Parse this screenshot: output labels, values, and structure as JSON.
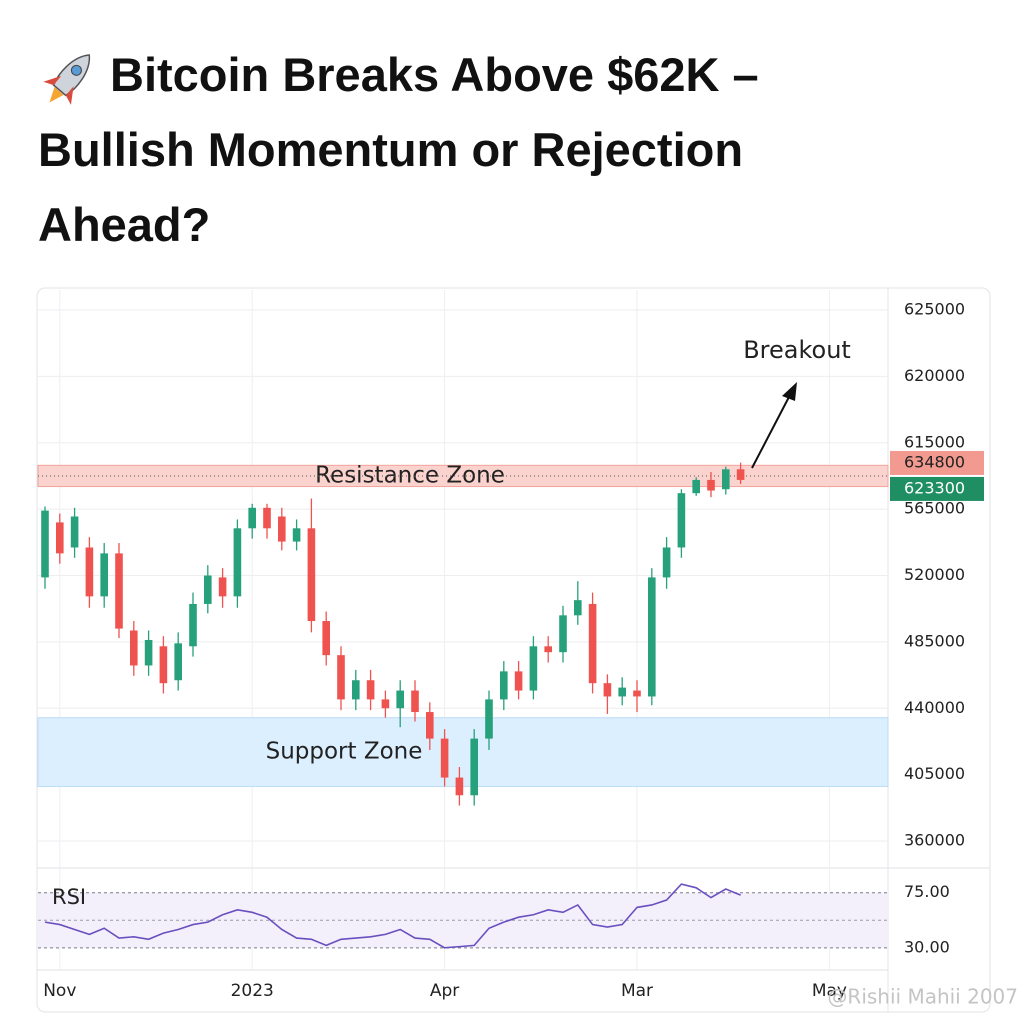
{
  "headline": "Bitcoin Breaks Above $62K – Bullish Momentum or Rejection Ahead?",
  "watermark": "@Rishii Mahii 2007",
  "chart_data": [
    {
      "type": "candlestick",
      "categories": [
        null,
        "Nov",
        null,
        null,
        null,
        null,
        null,
        null,
        null,
        null,
        null,
        null,
        null,
        null,
        "2023",
        null,
        null,
        null,
        null,
        null,
        null,
        null,
        null,
        null,
        null,
        null,
        null,
        "Apr",
        null,
        null,
        null,
        null,
        null,
        null,
        null,
        null,
        null,
        null,
        null,
        null,
        "Mar",
        null,
        null,
        null,
        null,
        null,
        null,
        null,
        null,
        null,
        null,
        null,
        null,
        "May",
        null,
        null,
        null
      ],
      "open": [
        519000,
        556000,
        539000,
        539000,
        509000,
        535000,
        491000,
        469000,
        482000,
        459000,
        482000,
        505000,
        519000,
        509000,
        552000,
        566000,
        560000,
        543000,
        552000,
        496000,
        476000,
        446000,
        459000,
        446000,
        440000,
        452000,
        438000,
        424000,
        403000,
        391000,
        424000,
        446000,
        465000,
        452000,
        482000,
        478000,
        499000,
        505000,
        457000,
        448000,
        452000,
        448000,
        519000,
        539000,
        577000,
        587000,
        580000,
        595000,
        null,
        null,
        null,
        null,
        null,
        null,
        null,
        null,
        null
      ],
      "high": [
        567000,
        562000,
        566000,
        546000,
        542000,
        542000,
        496000,
        491000,
        488000,
        490000,
        511000,
        527000,
        525000,
        558000,
        569000,
        569000,
        566000,
        558000,
        573000,
        501000,
        482000,
        466000,
        466000,
        452000,
        459000,
        459000,
        444000,
        429000,
        409000,
        429000,
        452000,
        472000,
        472000,
        488000,
        488000,
        504000,
        517000,
        511000,
        463000,
        461000,
        459000,
        525000,
        546000,
        580000,
        589000,
        593000,
        597000,
        600000,
        null,
        null,
        null,
        null,
        null,
        null,
        null,
        null,
        null
      ],
      "low": [
        513000,
        528000,
        532000,
        503000,
        503000,
        487000,
        462000,
        462000,
        450000,
        452000,
        475000,
        500000,
        503000,
        503000,
        545000,
        545000,
        537000,
        537000,
        490000,
        469000,
        439000,
        439000,
        439000,
        435000,
        430000,
        433000,
        418000,
        397000,
        384000,
        384000,
        418000,
        439000,
        446000,
        446000,
        471000,
        471000,
        494000,
        450000,
        437000,
        442000,
        438000,
        442000,
        513000,
        532000,
        575000,
        574000,
        576000,
        584000,
        null,
        null,
        null,
        null,
        null,
        null,
        null,
        null,
        null
      ],
      "close": [
        564000,
        535000,
        560000,
        509000,
        535000,
        492000,
        469000,
        486000,
        457000,
        484000,
        505000,
        520000,
        509000,
        552000,
        566000,
        552000,
        543000,
        552000,
        496000,
        476000,
        446000,
        459000,
        446000,
        440000,
        452000,
        438000,
        424000,
        403000,
        391000,
        424000,
        446000,
        465000,
        452000,
        482000,
        478000,
        499000,
        507000,
        457000,
        448000,
        454000,
        448000,
        519000,
        539000,
        577000,
        587000,
        579000,
        595000,
        587000,
        null,
        null,
        null,
        null,
        null,
        null,
        null,
        null,
        null
      ],
      "up_color": "#26a17b",
      "down_color": "#ef5350",
      "ylim": [
        360000,
        625000
      ],
      "yticks": [
        360000,
        405000,
        440000,
        485000,
        520000,
        565000,
        615000,
        620000,
        625000
      ],
      "grid": true,
      "zones": [
        {
          "label": "Resistance Zone",
          "range": [
            582000,
            598000
          ],
          "color": "#fbd3ce"
        },
        {
          "label": "Support Zone",
          "range": [
            397000,
            435000
          ],
          "color": "#dcefff"
        }
      ],
      "price_labels": [
        {
          "value": 634800,
          "color": "#f29a8f"
        },
        {
          "value": 623300,
          "color": "#1f8f63"
        }
      ],
      "annotation": "Breakout"
    },
    {
      "type": "line",
      "label": "RSI",
      "values": [
        51,
        49,
        45,
        41,
        46,
        38,
        39,
        37,
        42,
        45,
        49,
        51,
        57,
        61,
        59,
        55,
        45,
        38,
        37,
        32,
        37,
        38,
        39,
        41,
        45,
        38,
        37,
        30,
        31,
        32,
        46,
        51,
        55,
        57,
        61,
        59,
        65,
        49,
        47,
        49,
        63,
        65,
        69,
        82,
        79,
        71,
        78,
        73,
        null,
        null,
        null,
        null,
        null,
        null,
        null,
        null,
        null
      ],
      "color": "#6a4fbf",
      "ylim": [
        16,
        87
      ],
      "yticks": [
        {
          "value": 30,
          "label": "30.00"
        },
        {
          "value": 75,
          "label": "75.00"
        }
      ]
    }
  ]
}
